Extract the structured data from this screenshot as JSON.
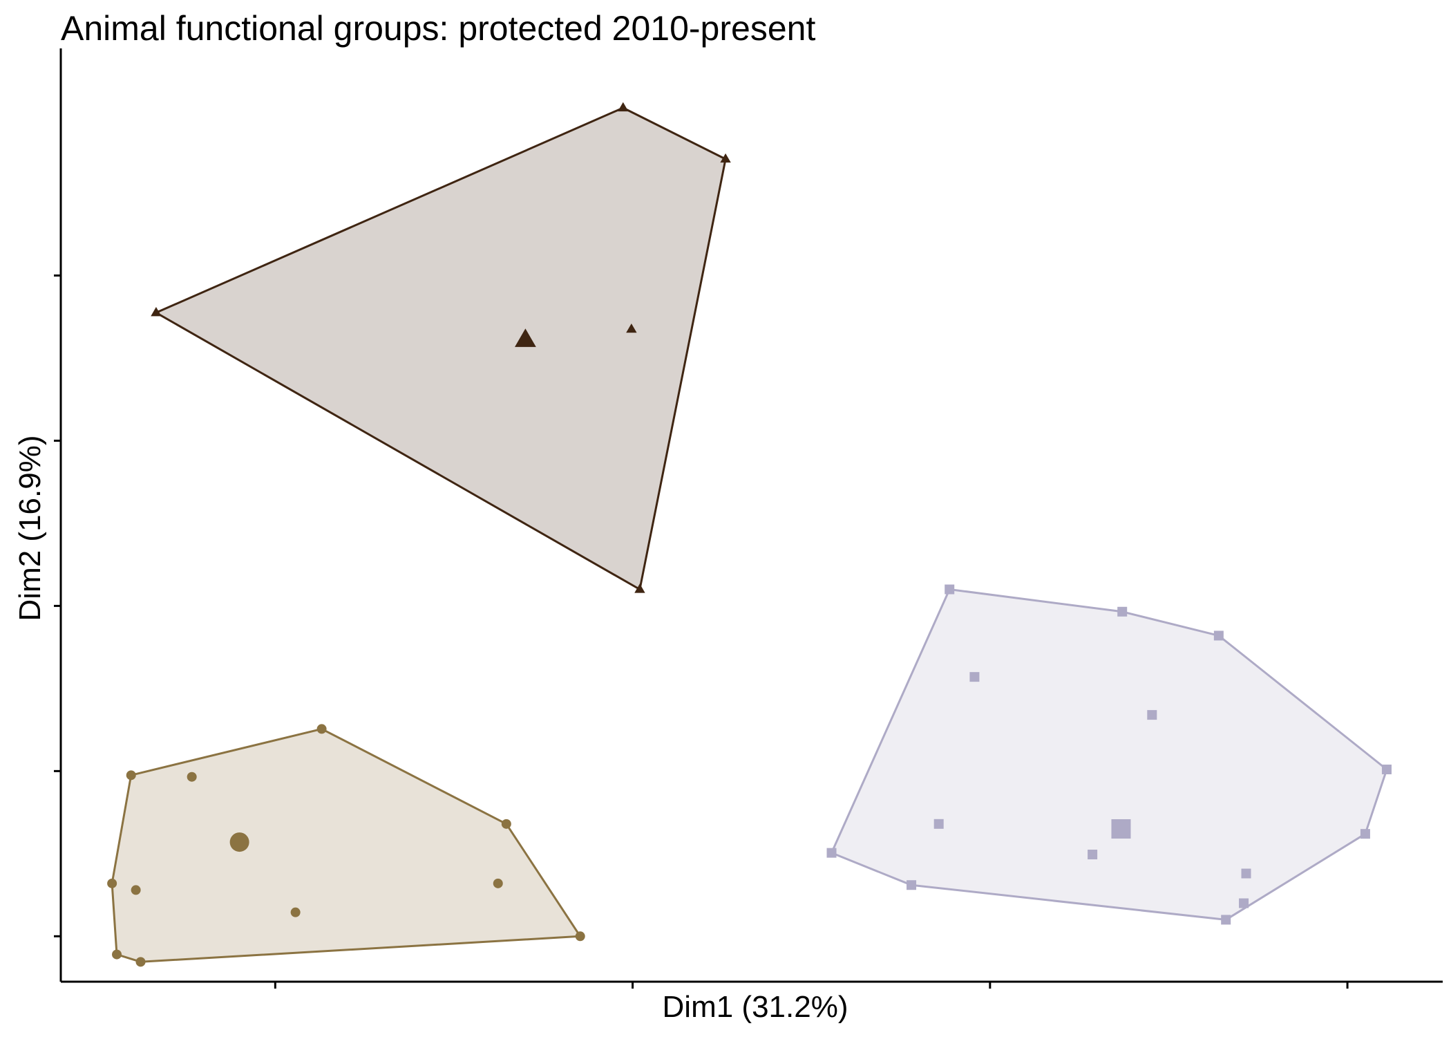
{
  "chart_data": {
    "type": "scatter",
    "title": "Animal functional groups: protected 2010-present",
    "xlabel": "Dim1 (31.2%)",
    "ylabel": "Dim2 (16.9%)",
    "x_ticks": [
      -3,
      0,
      3,
      6
    ],
    "y_ticks": [
      -4,
      -2,
      0,
      2,
      4
    ],
    "xlim": [
      -4.8,
      6.8
    ],
    "ylim": [
      -4.55,
      6.75
    ],
    "axis_tick_labels_shown": false,
    "grid": false,
    "legend": "none",
    "hull_stroke_width": 3,
    "groups": [
      {
        "color": "#3f2512",
        "fill": "#d9d3cf",
        "marker": "triangle",
        "centroid": {
          "x": -0.9,
          "y": 3.22
        },
        "points": [
          {
            "x": -0.08,
            "y": 6.03
          },
          {
            "x": 0.78,
            "y": 5.41
          },
          {
            "x": -4.0,
            "y": 3.55
          },
          {
            "x": 0.06,
            "y": 0.2
          },
          {
            "x": -0.01,
            "y": 3.35
          }
        ],
        "hull": [
          {
            "x": -0.08,
            "y": 6.03
          },
          {
            "x": 0.78,
            "y": 5.41
          },
          {
            "x": 0.06,
            "y": 0.2
          },
          {
            "x": -4.0,
            "y": 3.55
          }
        ]
      },
      {
        "color": "#8b7342",
        "fill": "#e8e2d8",
        "marker": "circle",
        "centroid": {
          "x": -3.3,
          "y": -2.86
        },
        "points": [
          {
            "x": -2.61,
            "y": -1.49
          },
          {
            "x": -4.21,
            "y": -2.05
          },
          {
            "x": -1.06,
            "y": -2.64
          },
          {
            "x": -0.44,
            "y": -4.0
          },
          {
            "x": -4.37,
            "y": -3.36
          },
          {
            "x": -4.33,
            "y": -4.22
          },
          {
            "x": -4.13,
            "y": -4.31
          },
          {
            "x": -3.7,
            "y": -2.07
          },
          {
            "x": -4.17,
            "y": -3.44
          },
          {
            "x": -1.13,
            "y": -3.36
          },
          {
            "x": -2.83,
            "y": -3.71
          }
        ],
        "hull": [
          {
            "x": -2.61,
            "y": -1.49
          },
          {
            "x": -1.06,
            "y": -2.64
          },
          {
            "x": -0.44,
            "y": -4.0
          },
          {
            "x": -4.13,
            "y": -4.31
          },
          {
            "x": -4.33,
            "y": -4.22
          },
          {
            "x": -4.37,
            "y": -3.36
          },
          {
            "x": -4.21,
            "y": -2.05
          }
        ]
      },
      {
        "color": "#aeaac6",
        "fill": "#efeef3",
        "marker": "square",
        "centroid": {
          "x": 4.1,
          "y": -2.7
        },
        "points": [
          {
            "x": 2.66,
            "y": 0.2
          },
          {
            "x": 4.11,
            "y": -0.07
          },
          {
            "x": 4.92,
            "y": -0.36
          },
          {
            "x": 6.33,
            "y": -1.98
          },
          {
            "x": 6.15,
            "y": -2.76
          },
          {
            "x": 4.98,
            "y": -3.8
          },
          {
            "x": 2.34,
            "y": -3.38
          },
          {
            "x": 1.67,
            "y": -2.99
          },
          {
            "x": 2.87,
            "y": -0.86
          },
          {
            "x": 4.36,
            "y": -1.32
          },
          {
            "x": 2.57,
            "y": -2.64
          },
          {
            "x": 3.86,
            "y": -3.01
          },
          {
            "x": 5.15,
            "y": -3.24
          },
          {
            "x": 5.13,
            "y": -3.6
          }
        ],
        "hull": [
          {
            "x": 2.66,
            "y": 0.2
          },
          {
            "x": 4.11,
            "y": -0.07
          },
          {
            "x": 4.92,
            "y": -0.36
          },
          {
            "x": 6.33,
            "y": -1.98
          },
          {
            "x": 6.15,
            "y": -2.76
          },
          {
            "x": 4.98,
            "y": -3.8
          },
          {
            "x": 2.34,
            "y": -3.38
          },
          {
            "x": 1.67,
            "y": -2.99
          }
        ]
      }
    ]
  }
}
